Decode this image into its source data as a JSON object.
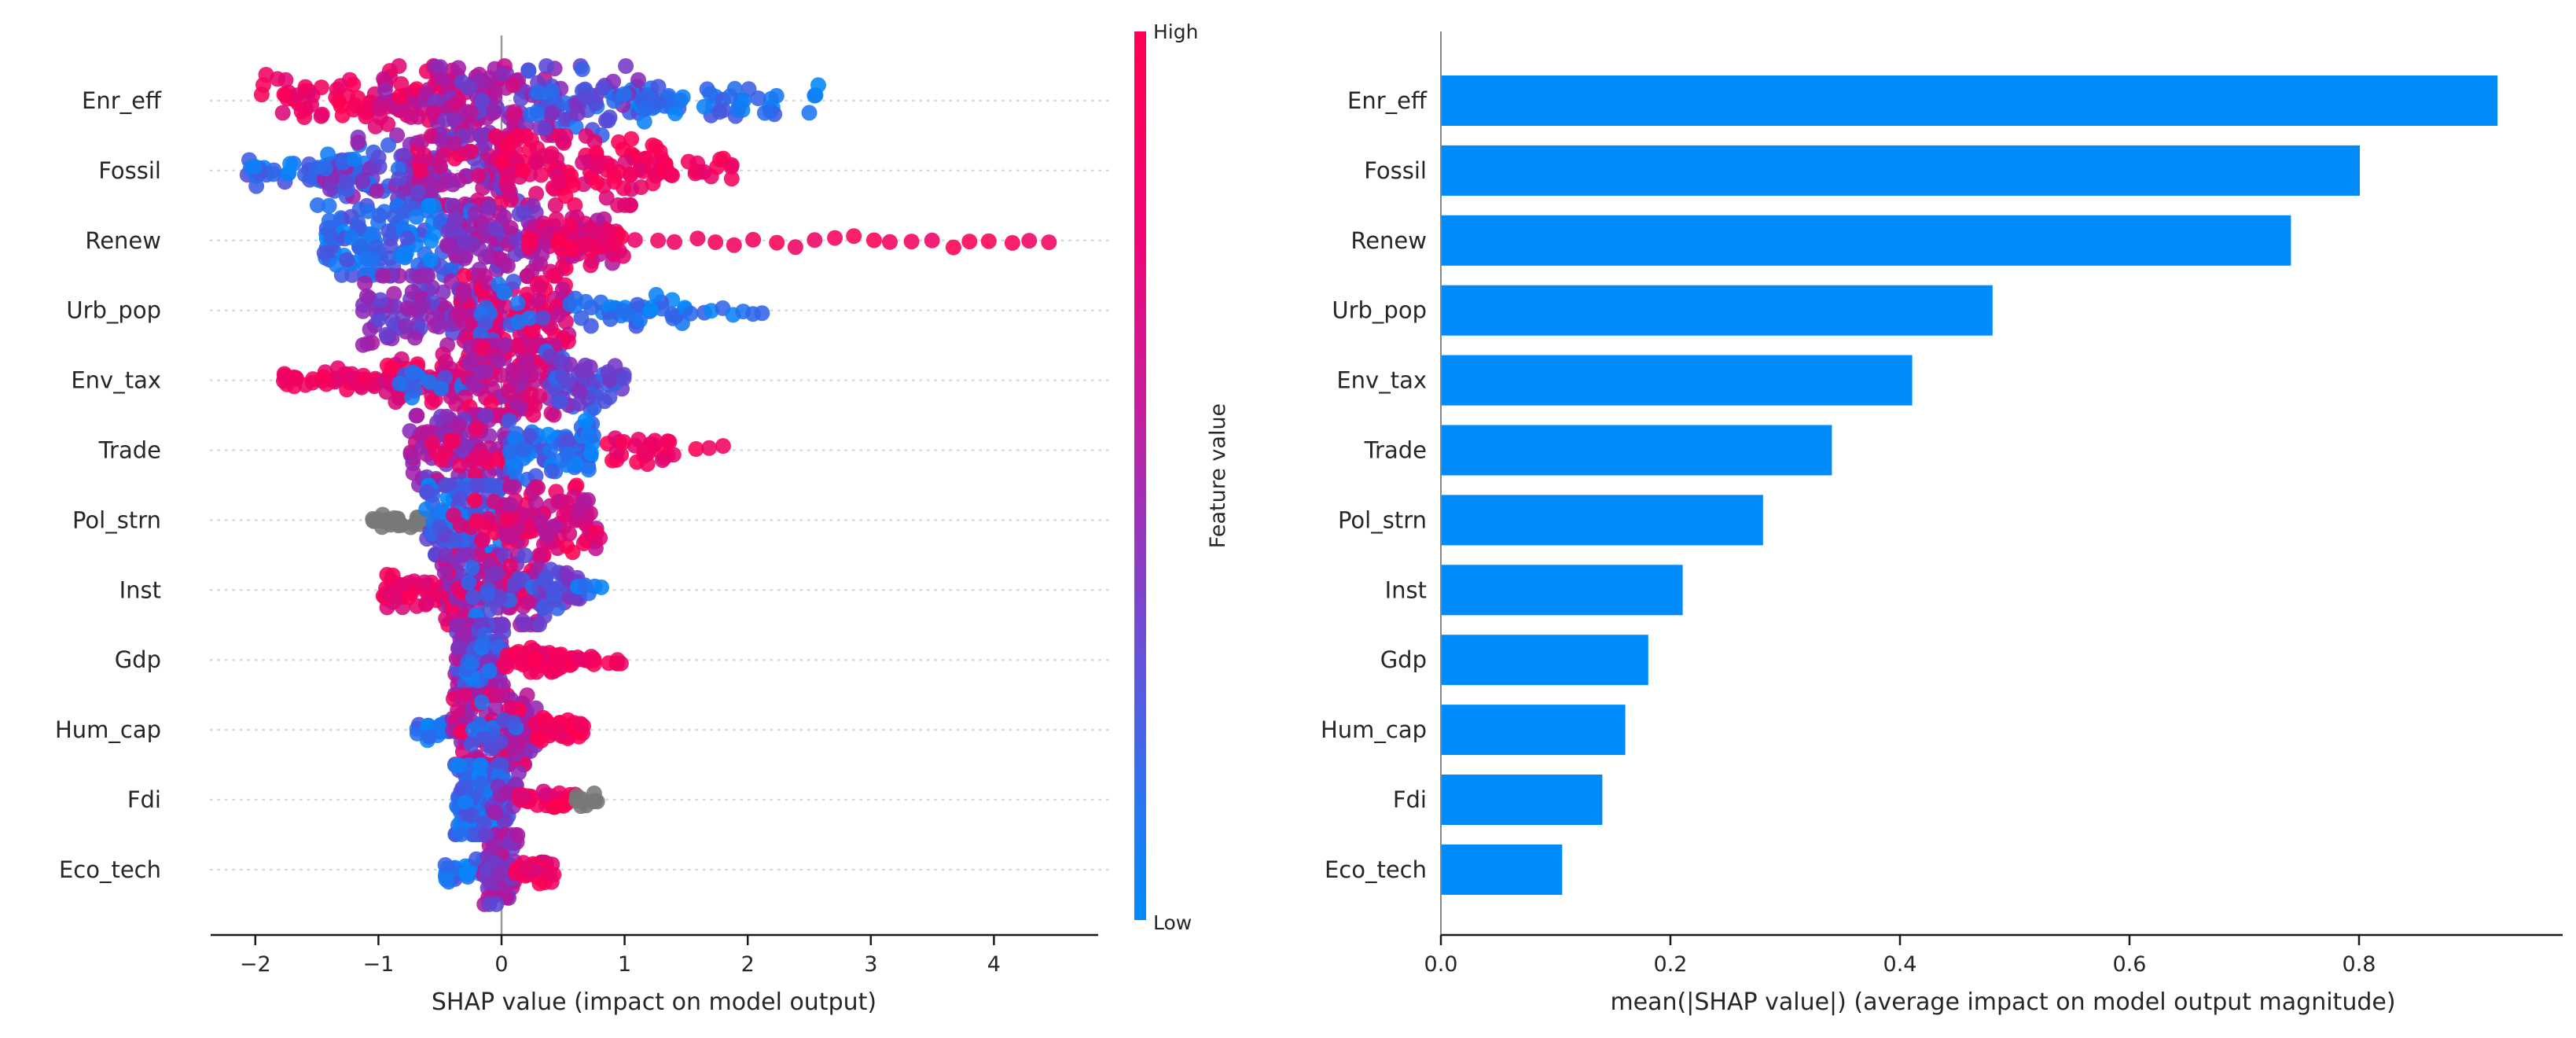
{
  "figure": {
    "background": "#ffffff",
    "description": "SHAP summary: beeswarm plot (left) with feature-value colorbar, and mean |SHAP| bar chart (right)"
  },
  "colors": {
    "shap_high_red": "#ff0051",
    "shap_low_blue": "#008bfb",
    "shap_mid_purple": "#8a2ba8",
    "missing_gray": "#777777",
    "bar_blue": "#008bfb",
    "grid_dotted": "#d8d8d8",
    "zero_line_gray": "#999999",
    "spine_gray": "#888888",
    "axis_black": "#1a1a1a",
    "text": "#262626"
  },
  "chart_data": [
    {
      "type": "scatter",
      "subtype": "shap-beeswarm",
      "title": "",
      "xlabel": "SHAP value (impact on model output)",
      "xlim": [
        -2.4,
        4.85
      ],
      "x_ticks": [
        -2,
        -1,
        0,
        1,
        2,
        3,
        4
      ],
      "x_tick_labels": [
        "−2",
        "−1",
        "0",
        "1",
        "2",
        "3",
        "4"
      ],
      "grid": "dotted horizontal per feature row",
      "zero_reference_line": 0,
      "colorbar": {
        "high": "High",
        "low": "Low",
        "title": "Feature value"
      },
      "features": [
        "Enr_eff",
        "Fossil",
        "Renew",
        "Urb_pop",
        "Env_tax",
        "Trade",
        "Pol_strn",
        "Inst",
        "Gdp",
        "Hum_cap",
        "Fdi",
        "Eco_tech"
      ],
      "shap_value_range": [
        [
          -1.96,
          2.59
        ],
        [
          -2.07,
          1.89
        ],
        [
          -1.45,
          4.45
        ],
        [
          -1.13,
          2.12
        ],
        [
          -1.78,
          1.0
        ],
        [
          -0.75,
          1.8
        ],
        [
          -1.05,
          0.8
        ],
        [
          -0.97,
          0.8
        ],
        [
          -0.38,
          1.02
        ],
        [
          -0.71,
          0.68
        ],
        [
          -0.38,
          0.79
        ],
        [
          -0.47,
          0.43
        ]
      ],
      "clusters": [
        {
          "feature": "Enr_eff",
          "groups": [
            {
              "x": [
                -1.96,
                -0.7
              ],
              "n": 60,
              "sig": 15,
              "shape": "u",
              "t": [
                0.82,
                1
              ]
            },
            {
              "x": [
                -1.0,
                -0.05
              ],
              "n": 90,
              "sig": 26,
              "shape": "u",
              "t": [
                0.55,
                1
              ]
            },
            {
              "x": [
                -0.55,
                0.45
              ],
              "n": 85,
              "sig": 31,
              "shape": "u",
              "t": [
                0.3,
                0.8
              ]
            },
            {
              "x": [
                0.15,
                1.25
              ],
              "n": 80,
              "sig": 20,
              "shape": "u",
              "t": [
                0.02,
                0.5
              ]
            },
            {
              "x": [
                1.1,
                2.59
              ],
              "n": 48,
              "sig": 10,
              "shape": "u",
              "t": [
                0,
                0.25
              ]
            }
          ]
        },
        {
          "feature": "Fossil",
          "groups": [
            {
              "x": [
                -2.07,
                -1.15
              ],
              "n": 40,
              "sig": 9,
              "shape": "u",
              "t": [
                0,
                0.3
              ]
            },
            {
              "x": [
                -1.5,
                -0.45
              ],
              "n": 85,
              "sig": 22,
              "shape": "u",
              "t": [
                0.05,
                0.6
              ]
            },
            {
              "x": [
                -0.7,
                0.15
              ],
              "n": 95,
              "sig": 28,
              "shape": "u",
              "t": [
                0.3,
                0.95
              ]
            },
            {
              "x": [
                -0.05,
                1.3
              ],
              "n": 115,
              "sig": 26,
              "shape": "u",
              "t": [
                0.8,
                1
              ]
            },
            {
              "x": [
                1.3,
                1.89
              ],
              "n": 20,
              "sig": 7,
              "shape": "u",
              "t": [
                0.85,
                1
              ]
            }
          ]
        },
        {
          "feature": "Renew",
          "groups": [
            {
              "x": [
                -1.45,
                -0.25
              ],
              "n": 130,
              "sig": 30,
              "shape": "u",
              "t": [
                0,
                0.3
              ]
            },
            {
              "x": [
                -0.45,
                0.3
              ],
              "n": 80,
              "sig": 27,
              "shape": "u",
              "t": [
                0.3,
                0.7
              ]
            },
            {
              "x": [
                0.2,
                0.95
              ],
              "n": 70,
              "sig": 18,
              "shape": "u",
              "t": [
                0.6,
                1
              ]
            },
            {
              "x": [
                0.45,
                1.0
              ],
              "n": 25,
              "sig": 9,
              "shape": "u",
              "t": [
                0.85,
                1
              ]
            },
            {
              "x": [
                1.1,
                4.45
              ],
              "n": 22,
              "sig": 4,
              "shape": "s",
              "t": [
                0.9,
                1
              ]
            }
          ]
        },
        {
          "feature": "Urb_pop",
          "groups": [
            {
              "x": [
                -1.13,
                -0.2
              ],
              "n": 90,
              "sig": 24,
              "shape": "u",
              "t": [
                0.3,
                0.65
              ]
            },
            {
              "x": [
                -0.35,
                0.55
              ],
              "n": 110,
              "sig": 28,
              "shape": "u",
              "t": [
                0.6,
                1
              ]
            },
            {
              "x": [
                -0.2,
                0.4
              ],
              "n": 14,
              "sig": 20,
              "shape": "u",
              "t": [
                0.05,
                0.3
              ]
            },
            {
              "x": [
                0.55,
                1.5
              ],
              "n": 40,
              "sig": 9,
              "shape": "u",
              "t": [
                0,
                0.25
              ]
            },
            {
              "x": [
                1.55,
                2.12
              ],
              "n": 8,
              "sig": 4,
              "shape": "s",
              "t": [
                0,
                0.2
              ]
            }
          ]
        },
        {
          "feature": "Env_tax",
          "groups": [
            {
              "x": [
                -1.78,
                -0.85
              ],
              "n": 45,
              "sig": 7,
              "shape": "u",
              "t": [
                0.85,
                1
              ]
            },
            {
              "x": [
                -0.95,
                -0.25
              ],
              "n": 70,
              "sig": 15,
              "shape": "u",
              "t": [
                0.7,
                1
              ]
            },
            {
              "x": [
                -0.85,
                -0.3
              ],
              "n": 14,
              "sig": 10,
              "shape": "u",
              "t": [
                0.05,
                0.3
              ]
            },
            {
              "x": [
                -0.3,
                0.45
              ],
              "n": 120,
              "sig": 33,
              "shape": "u",
              "t": [
                0.5,
                0.95
              ]
            },
            {
              "x": [
                0.35,
                1.0
              ],
              "n": 55,
              "sig": 17,
              "shape": "u",
              "t": [
                0.1,
                0.5
              ]
            }
          ]
        },
        {
          "feature": "Trade",
          "groups": [
            {
              "x": [
                -0.75,
                0.1
              ],
              "n": 115,
              "sig": 29,
              "shape": "u",
              "t": [
                0.35,
                0.8
              ]
            },
            {
              "x": [
                -0.6,
                0.05
              ],
              "n": 15,
              "sig": 22,
              "shape": "u",
              "t": [
                0.85,
                1
              ]
            },
            {
              "x": [
                0.05,
                0.78
              ],
              "n": 80,
              "sig": 17,
              "shape": "u",
              "t": [
                0,
                0.3
              ]
            },
            {
              "x": [
                0.85,
                1.45
              ],
              "n": 28,
              "sig": 8,
              "shape": "u",
              "t": [
                0.85,
                1
              ]
            },
            {
              "x": [
                1.6,
                1.8
              ],
              "n": 3,
              "sig": 4,
              "shape": "s",
              "t": [
                0.9,
                1
              ]
            }
          ]
        },
        {
          "feature": "Pol_strn",
          "groups": [
            {
              "x": [
                -1.05,
                -0.55
              ],
              "n": 35,
              "sig": 5,
              "shape": "u",
              "t": "gray"
            },
            {
              "x": [
                -0.62,
                0.05
              ],
              "n": 110,
              "sig": 29,
              "shape": "u",
              "t": [
                0,
                0.4
              ]
            },
            {
              "x": [
                -0.45,
                -0.05
              ],
              "n": 12,
              "sig": 18,
              "shape": "u",
              "t": [
                0.8,
                1
              ]
            },
            {
              "x": [
                0.0,
                0.8
              ],
              "n": 100,
              "sig": 21,
              "shape": "u",
              "t": [
                0.6,
                1
              ]
            }
          ]
        },
        {
          "feature": "Inst",
          "groups": [
            {
              "x": [
                -0.97,
                -0.35
              ],
              "n": 60,
              "sig": 11,
              "shape": "u",
              "t": [
                0.8,
                1
              ]
            },
            {
              "x": [
                -0.5,
                0.35
              ],
              "n": 130,
              "sig": 31,
              "shape": "u",
              "t": [
                0.35,
                1
              ]
            },
            {
              "x": [
                -0.3,
                0.3
              ],
              "n": 18,
              "sig": 25,
              "shape": "u",
              "t": [
                0.05,
                0.35
              ]
            },
            {
              "x": [
                0.3,
                0.65
              ],
              "n": 40,
              "sig": 13,
              "shape": "u",
              "t": [
                0.15,
                0.5
              ]
            },
            {
              "x": [
                0.62,
                0.8
              ],
              "n": 6,
              "sig": 4,
              "shape": "s",
              "t": [
                0,
                0.15
              ]
            }
          ]
        },
        {
          "feature": "Gdp",
          "groups": [
            {
              "x": [
                -0.38,
                0.02
              ],
              "n": 115,
              "sig": 34,
              "shape": "u",
              "t": [
                0.2,
                0.7
              ]
            },
            {
              "x": [
                -0.3,
                0.0
              ],
              "n": 12,
              "sig": 20,
              "shape": "u",
              "t": [
                0.02,
                0.2
              ]
            },
            {
              "x": [
                0.02,
                0.5
              ],
              "n": 50,
              "sig": 7,
              "shape": "u",
              "t": [
                0.85,
                1
              ]
            },
            {
              "x": [
                0.5,
                1.02
              ],
              "n": 22,
              "sig": 4,
              "shape": "u",
              "t": [
                0.88,
                1
              ]
            }
          ]
        },
        {
          "feature": "Hum_cap",
          "groups": [
            {
              "x": [
                -0.71,
                -0.36
              ],
              "n": 30,
              "sig": 6,
              "shape": "u",
              "t": [
                0,
                0.25
              ]
            },
            {
              "x": [
                -0.4,
                0.28
              ],
              "n": 120,
              "sig": 29,
              "shape": "u",
              "t": [
                0.45,
                1
              ]
            },
            {
              "x": [
                -0.25,
                0.2
              ],
              "n": 14,
              "sig": 20,
              "shape": "u",
              "t": [
                0.05,
                0.3
              ]
            },
            {
              "x": [
                0.28,
                0.68
              ],
              "n": 40,
              "sig": 7,
              "shape": "u",
              "t": [
                0.85,
                1
              ]
            }
          ]
        },
        {
          "feature": "Fdi",
          "groups": [
            {
              "x": [
                -0.38,
                0.06
              ],
              "n": 120,
              "sig": 33,
              "shape": "u",
              "t": [
                0,
                0.3
              ]
            },
            {
              "x": [
                -0.1,
                0.15
              ],
              "n": 14,
              "sig": 18,
              "shape": "u",
              "t": [
                0.35,
                0.6
              ]
            },
            {
              "x": [
                0.12,
                0.6
              ],
              "n": 35,
              "sig": 6,
              "shape": "u",
              "t": [
                0.8,
                1
              ]
            },
            {
              "x": [
                0.6,
                0.79
              ],
              "n": 10,
              "sig": 4,
              "shape": "s",
              "t": "gray"
            }
          ]
        },
        {
          "feature": "Eco_tech",
          "groups": [
            {
              "x": [
                -0.47,
                -0.12
              ],
              "n": 28,
              "sig": 7,
              "shape": "u",
              "t": [
                0,
                0.3
              ]
            },
            {
              "x": [
                -0.15,
                0.13
              ],
              "n": 75,
              "sig": 29,
              "shape": "u",
              "t": [
                0.3,
                0.75
              ]
            },
            {
              "x": [
                0.1,
                0.43
              ],
              "n": 32,
              "sig": 8,
              "shape": "u",
              "t": [
                0.8,
                1
              ]
            }
          ]
        }
      ]
    },
    {
      "type": "bar",
      "orientation": "horizontal",
      "title": "",
      "xlabel": "mean(|SHAP value|) (average impact on model output magnitude)",
      "categories": [
        "Enr_eff",
        "Fossil",
        "Renew",
        "Urb_pop",
        "Env_tax",
        "Trade",
        "Pol_strn",
        "Inst",
        "Gdp",
        "Hum_cap",
        "Fdi",
        "Eco_tech"
      ],
      "values": [
        0.92,
        0.8,
        0.74,
        0.48,
        0.41,
        0.34,
        0.28,
        0.21,
        0.18,
        0.16,
        0.14,
        0.105
      ],
      "x_ticks": [
        0.0,
        0.2,
        0.4,
        0.6,
        0.8
      ],
      "x_tick_labels": [
        "0.0",
        "0.2",
        "0.4",
        "0.6",
        "0.8"
      ],
      "xlim": [
        0,
        0.977
      ],
      "bar_color": "#008bfb",
      "grid": "off",
      "legend": "none"
    }
  ]
}
